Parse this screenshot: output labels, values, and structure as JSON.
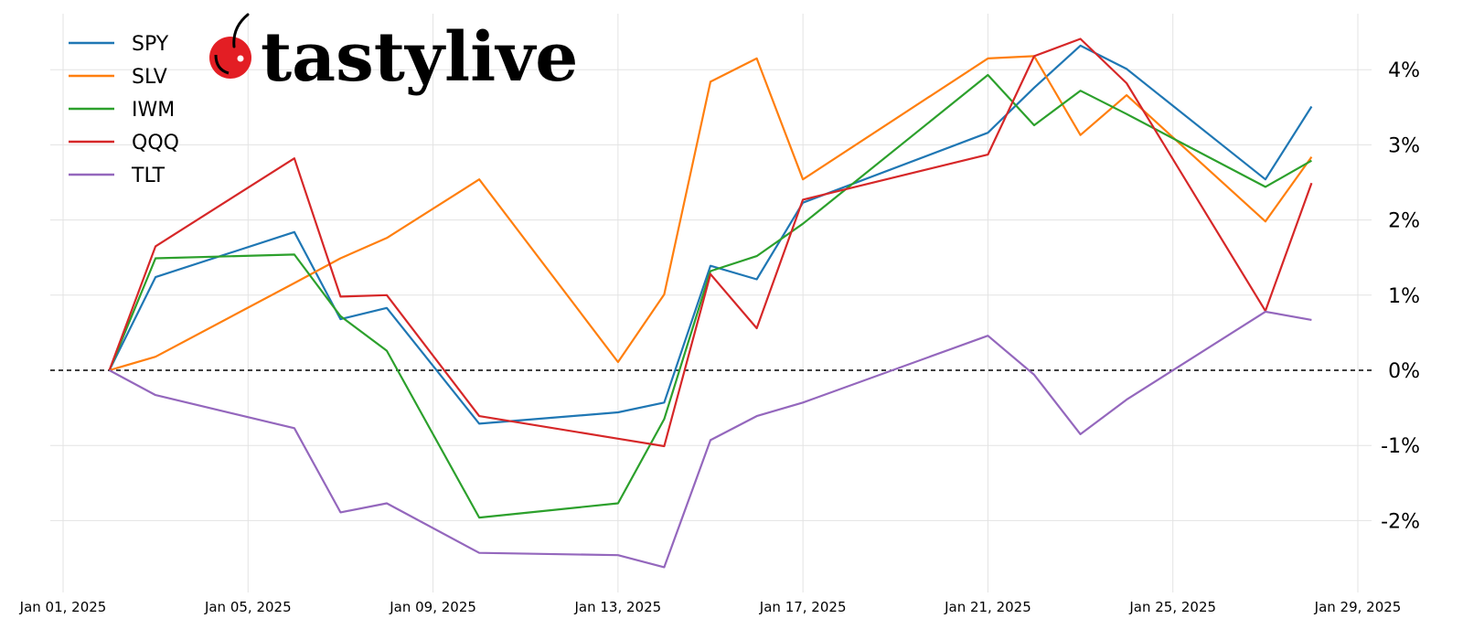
{
  "brand": {
    "logo_text": "tastylive",
    "logo_color": "#e31e24"
  },
  "chart_data": {
    "type": "line",
    "title": "",
    "xlabel": "",
    "ylabel": "",
    "x": [
      "2025-01-02",
      "2025-01-03",
      "2025-01-06",
      "2025-01-07",
      "2025-01-08",
      "2025-01-10",
      "2025-01-13",
      "2025-01-14",
      "2025-01-15",
      "2025-01-16",
      "2025-01-17",
      "2025-01-21",
      "2025-01-22",
      "2025-01-23",
      "2025-01-24",
      "2025-01-27",
      "2025-01-28"
    ],
    "xlim": [
      "2025-01-01",
      "2025-01-29"
    ],
    "xticks": [
      "Jan 01, 2025",
      "Jan 05, 2025",
      "Jan 09, 2025",
      "Jan 13, 2025",
      "Jan 17, 2025",
      "Jan 21, 2025",
      "Jan 25, 2025",
      "Jan 29, 2025"
    ],
    "ylim": [
      -2.95,
      4.75
    ],
    "yticks": [
      "-2%",
      "-1%",
      "0%",
      "1%",
      "2%",
      "3%",
      "4%"
    ],
    "yaxis_position": "right",
    "grid": true,
    "reference_line": {
      "y": 0,
      "style": "dashed",
      "color": "#000000"
    },
    "legend_position": "top-left",
    "series": [
      {
        "name": "SPY",
        "color": "#1f77b4",
        "values": [
          0,
          1.24,
          1.84,
          0.68,
          0.83,
          -0.71,
          -0.56,
          -0.43,
          1.39,
          1.21,
          2.23,
          3.16,
          3.76,
          4.32,
          4.01,
          2.54,
          3.51
        ]
      },
      {
        "name": "SLV",
        "color": "#ff7f0e",
        "values": [
          0,
          0.18,
          1.16,
          1.49,
          1.76,
          2.54,
          0.11,
          1.01,
          3.84,
          4.15,
          2.54,
          4.15,
          4.18,
          3.13,
          3.66,
          1.98,
          2.84
        ]
      },
      {
        "name": "IWM",
        "color": "#2ca02c",
        "values": [
          0,
          1.49,
          1.54,
          0.72,
          0.26,
          -1.96,
          -1.77,
          -0.65,
          1.32,
          1.52,
          1.95,
          3.93,
          3.26,
          3.72,
          3.41,
          2.44,
          2.79
        ]
      },
      {
        "name": "QQQ",
        "color": "#d62728",
        "values": [
          0,
          1.65,
          2.82,
          0.98,
          1.0,
          -0.61,
          -0.91,
          -1.01,
          1.28,
          0.56,
          2.27,
          2.87,
          4.18,
          4.41,
          3.82,
          0.79,
          2.49
        ]
      },
      {
        "name": "TLT",
        "color": "#9467bd",
        "values": [
          0,
          -0.33,
          -0.77,
          -1.89,
          -1.77,
          -2.43,
          -2.46,
          -2.62,
          -0.93,
          -0.61,
          -0.43,
          0.46,
          -0.06,
          -0.85,
          -0.39,
          0.78,
          0.67
        ]
      }
    ]
  }
}
